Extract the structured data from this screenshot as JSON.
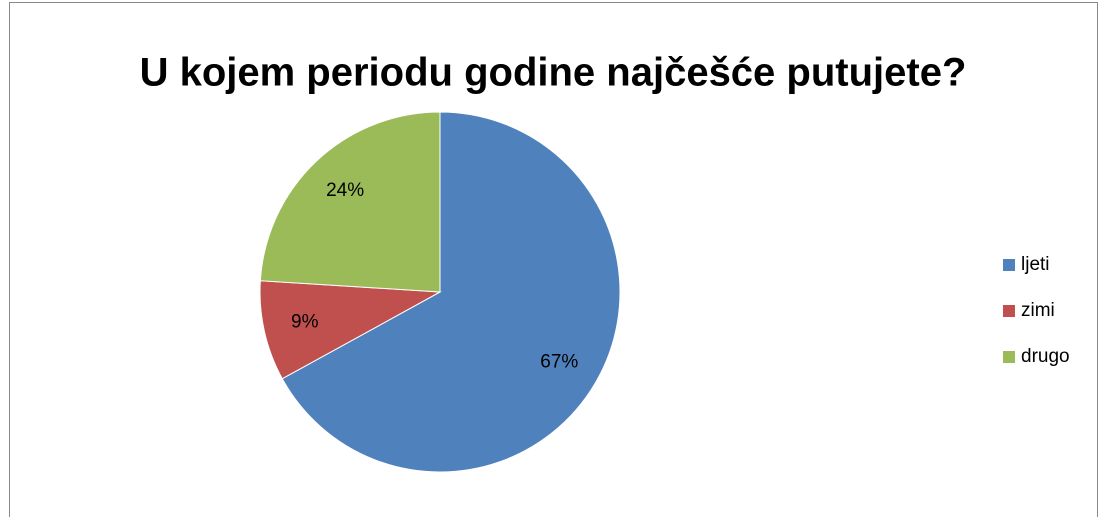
{
  "chart_data": {
    "type": "pie",
    "title": "U kojem periodu godine najčešće putujete?",
    "categories": [
      "ljeti",
      "zimi",
      "drugo"
    ],
    "values": [
      67,
      9,
      24
    ],
    "value_labels": [
      "67%",
      "9%",
      "24%"
    ],
    "colors": [
      "#4f81bd",
      "#c0504d",
      "#9bbb59"
    ],
    "legend": "right"
  }
}
